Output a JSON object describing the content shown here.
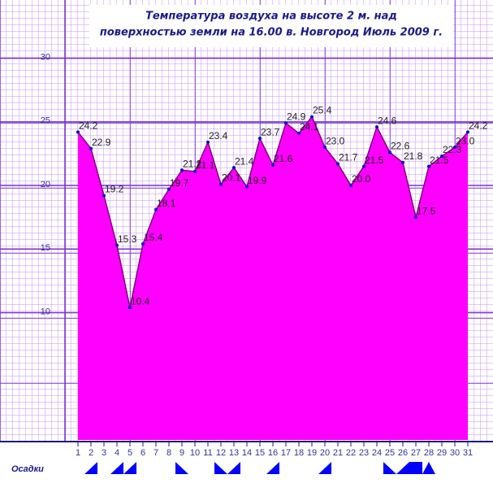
{
  "chart_data": {
    "type": "area",
    "title": [
      "Температура воздуха на высоте 2 м. над",
      "поверхностью земли на 16.00 в. Новгород Июль 2009 г."
    ],
    "x": [
      1,
      2,
      3,
      4,
      5,
      6,
      7,
      8,
      9,
      10,
      11,
      12,
      13,
      14,
      15,
      16,
      17,
      18,
      19,
      20,
      21,
      22,
      23,
      24,
      25,
      26,
      27,
      28,
      29,
      30,
      31
    ],
    "values": [
      24.2,
      22.9,
      19.2,
      15.3,
      10.4,
      15.4,
      18.1,
      19.7,
      21.2,
      21.1,
      23.4,
      20.1,
      21.4,
      19.9,
      23.7,
      21.6,
      24.9,
      24.1,
      25.4,
      23.0,
      21.7,
      20.0,
      21.5,
      24.6,
      22.6,
      21.8,
      17.5,
      21.5,
      22.3,
      23.0,
      24.2
    ],
    "value_labels": [
      "24.2",
      "22.9",
      "19.2",
      "15.3",
      "10.4",
      "15.4",
      "18.1",
      "19.7",
      "21.2",
      "21.1",
      "23.4",
      "20.1",
      "21.4",
      "19.9",
      "23.7",
      "21.6",
      "24.9",
      "24.1",
      "25.4",
      "23.0",
      "21.7",
      "20.0",
      "21.5",
      "24.6",
      "22.6",
      "21.8",
      "17.5",
      "21.5",
      "22.3",
      "23.0",
      "24.2"
    ],
    "color": "#ff00ff",
    "line_color": "#800080",
    "marker_color": "#0000cc",
    "xlim": [
      0,
      32
    ],
    "xticks": [
      1,
      2,
      3,
      4,
      5,
      6,
      7,
      8,
      9,
      10,
      11,
      12,
      13,
      14,
      15,
      16,
      17,
      18,
      19,
      20,
      21,
      22,
      23,
      24,
      25,
      26,
      27,
      28,
      29,
      30,
      31
    ],
    "ylim": [
      0,
      34
    ],
    "yticks": [
      10,
      15,
      20,
      25,
      30
    ],
    "grid": true,
    "precipitation_label": "Осадки"
  }
}
